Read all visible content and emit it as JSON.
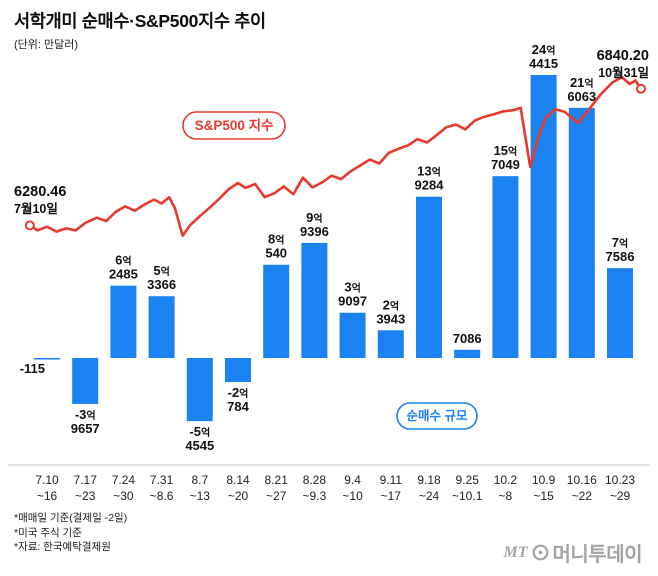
{
  "title": "서학개미 순매수·S&P500지수 추이",
  "subtitle": "(단위: 만달러)",
  "colors": {
    "bar": "#1b82f2",
    "line": "#e8392f",
    "axis": "#c9c9c9",
    "text": "#111111",
    "logo": "#a3a3a3"
  },
  "annotations": {
    "line_label": "S&P500 지수",
    "bar_label": "순매수 규모",
    "start_value": "6280.46",
    "start_date": "7월10일",
    "end_value": "6840.20",
    "end_date": "10월31일"
  },
  "footnotes": [
    "*매매일 기준(결제일 -2일)",
    "*미국 주식 기준",
    "*자료: 한국예탁결제원"
  ],
  "logo": {
    "mt": "MT",
    "name": "머니투데이"
  },
  "chart_data": {
    "type": "bar+line",
    "title": "서학개미 순매수·S&P500지수 추이",
    "unit": "만달러",
    "categories": [
      [
        "7.10",
        "~16"
      ],
      [
        "7.17",
        "~23"
      ],
      [
        "7.24",
        "~30"
      ],
      [
        "7.31",
        "~8.6"
      ],
      [
        "8.7",
        "~13"
      ],
      [
        "8.14",
        "~20"
      ],
      [
        "8.21",
        "~27"
      ],
      [
        "8.28",
        "~9.3"
      ],
      [
        "9.4",
        "~10"
      ],
      [
        "9.11",
        "~17"
      ],
      [
        "9.18",
        "~24"
      ],
      [
        "9.25",
        "~10.1"
      ],
      [
        "10.2",
        "~8"
      ],
      [
        "10.9",
        "~15"
      ],
      [
        "10.16",
        "~22"
      ],
      [
        "10.23",
        "~29"
      ]
    ],
    "bars": {
      "name": "순매수 규모",
      "values": [
        -115,
        -39657,
        62485,
        53366,
        -54545,
        -20784,
        80540,
        99396,
        39097,
        23943,
        139284,
        7086,
        157049,
        244415,
        216063,
        77586
      ],
      "labels": [
        [
          "-115"
        ],
        [
          "-3억",
          "9657"
        ],
        [
          "6억",
          "2485"
        ],
        [
          "5억",
          "3366"
        ],
        [
          "-5억",
          "4545"
        ],
        [
          "-2억",
          "784"
        ],
        [
          "8억",
          "540"
        ],
        [
          "9억",
          "9396"
        ],
        [
          "3억",
          "9097"
        ],
        [
          "2억",
          "3943"
        ],
        [
          "13억",
          "9284"
        ],
        [
          "7086"
        ],
        [
          "15억",
          "7049"
        ],
        [
          "24억",
          "4415"
        ],
        [
          "21억",
          "6063"
        ],
        [
          "7억",
          "7586"
        ]
      ]
    },
    "line": {
      "name": "S&P500 지수",
      "start_value": 6280.46,
      "end_value": 6840.2,
      "ylim": [
        6200,
        6950
      ],
      "points": [
        [
          -0.45,
          6280.46
        ],
        [
          -0.25,
          6260
        ],
        [
          0,
          6275
        ],
        [
          0.25,
          6255
        ],
        [
          0.5,
          6268
        ],
        [
          0.75,
          6260
        ],
        [
          1,
          6290
        ],
        [
          1.3,
          6312
        ],
        [
          1.55,
          6298
        ],
        [
          1.8,
          6336
        ],
        [
          2.05,
          6358
        ],
        [
          2.3,
          6340
        ],
        [
          2.55,
          6366
        ],
        [
          2.8,
          6386
        ],
        [
          3,
          6370
        ],
        [
          3.2,
          6396
        ],
        [
          3.35,
          6350
        ],
        [
          3.55,
          6238
        ],
        [
          3.75,
          6282
        ],
        [
          4,
          6318
        ],
        [
          4.25,
          6352
        ],
        [
          4.5,
          6388
        ],
        [
          4.75,
          6428
        ],
        [
          5,
          6454
        ],
        [
          5.2,
          6434
        ],
        [
          5.45,
          6450
        ],
        [
          5.7,
          6396
        ],
        [
          5.95,
          6412
        ],
        [
          6.2,
          6440
        ],
        [
          6.45,
          6408
        ],
        [
          6.7,
          6476
        ],
        [
          6.95,
          6436
        ],
        [
          7.2,
          6456
        ],
        [
          7.45,
          6484
        ],
        [
          7.7,
          6470
        ],
        [
          7.95,
          6502
        ],
        [
          8.2,
          6526
        ],
        [
          8.45,
          6550
        ],
        [
          8.7,
          6534
        ],
        [
          8.95,
          6578
        ],
        [
          9.2,
          6594
        ],
        [
          9.45,
          6608
        ],
        [
          9.7,
          6634
        ],
        [
          9.95,
          6620
        ],
        [
          10.2,
          6650
        ],
        [
          10.45,
          6682
        ],
        [
          10.7,
          6694
        ],
        [
          10.95,
          6674
        ],
        [
          11.2,
          6710
        ],
        [
          11.45,
          6726
        ],
        [
          11.7,
          6736
        ],
        [
          11.95,
          6748
        ],
        [
          12.2,
          6752
        ],
        [
          12.4,
          6762
        ],
        [
          12.65,
          6520
        ],
        [
          12.85,
          6636
        ],
        [
          13.05,
          6720
        ],
        [
          13.3,
          6756
        ],
        [
          13.55,
          6746
        ],
        [
          13.9,
          6700
        ],
        [
          14.2,
          6758
        ],
        [
          14.5,
          6818
        ],
        [
          14.8,
          6866
        ],
        [
          15.05,
          6888
        ],
        [
          15.25,
          6860
        ],
        [
          15.4,
          6874
        ],
        [
          15.55,
          6840.2
        ]
      ]
    }
  }
}
